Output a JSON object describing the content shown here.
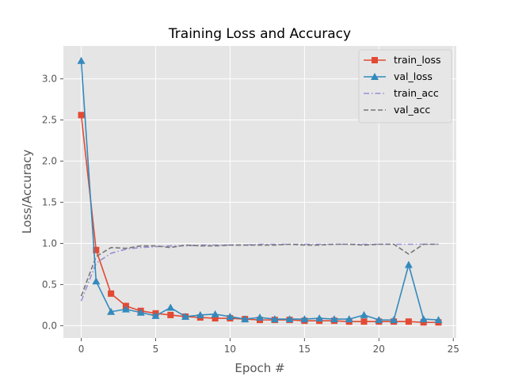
{
  "chart_data": {
    "type": "line",
    "title": "Training Loss and Accuracy",
    "xlabel": "Epoch #",
    "ylabel": "Loss/Accuracy",
    "xlim": [
      -1.2,
      25.2
    ],
    "ylim": [
      -0.15,
      3.4
    ],
    "xticks": [
      0,
      5,
      10,
      15,
      20,
      25
    ],
    "yticks": [
      0.0,
      0.5,
      1.0,
      1.5,
      2.0,
      2.5,
      3.0
    ],
    "xtick_labels": [
      "0",
      "5",
      "10",
      "15",
      "20",
      "25"
    ],
    "ytick_labels": [
      "0.0",
      "0.5",
      "1.0",
      "1.5",
      "2.0",
      "2.5",
      "3.0"
    ],
    "grid": true,
    "legend_position": "top-right",
    "x": [
      0,
      1,
      2,
      3,
      4,
      5,
      6,
      7,
      8,
      9,
      10,
      11,
      12,
      13,
      14,
      15,
      16,
      17,
      18,
      19,
      20,
      21,
      22,
      23,
      24
    ],
    "series": [
      {
        "name": "train_loss",
        "color": "#E24A33",
        "linestyle": "solid",
        "marker": "square",
        "values": [
          2.56,
          0.92,
          0.39,
          0.24,
          0.18,
          0.15,
          0.13,
          0.11,
          0.1,
          0.09,
          0.09,
          0.08,
          0.07,
          0.07,
          0.07,
          0.06,
          0.06,
          0.06,
          0.05,
          0.05,
          0.05,
          0.05,
          0.05,
          0.04,
          0.04
        ]
      },
      {
        "name": "val_loss",
        "color": "#348ABD",
        "linestyle": "solid",
        "marker": "triangle",
        "values": [
          3.22,
          0.54,
          0.17,
          0.2,
          0.16,
          0.12,
          0.22,
          0.11,
          0.13,
          0.14,
          0.11,
          0.08,
          0.1,
          0.08,
          0.08,
          0.08,
          0.09,
          0.08,
          0.08,
          0.13,
          0.07,
          0.07,
          0.74,
          0.08,
          0.07
        ]
      },
      {
        "name": "train_acc",
        "color": "#988ED5",
        "linestyle": "dashdot",
        "marker": "none",
        "values": [
          0.3,
          0.76,
          0.88,
          0.93,
          0.95,
          0.96,
          0.97,
          0.97,
          0.98,
          0.98,
          0.98,
          0.98,
          0.99,
          0.99,
          0.99,
          0.99,
          0.99,
          0.99,
          0.99,
          0.99,
          0.99,
          0.99,
          0.99,
          0.99,
          0.99
        ]
      },
      {
        "name": "val_acc",
        "color": "#777777",
        "linestyle": "dashed",
        "marker": "none",
        "values": [
          0.36,
          0.84,
          0.95,
          0.94,
          0.97,
          0.97,
          0.95,
          0.98,
          0.97,
          0.97,
          0.98,
          0.98,
          0.98,
          0.98,
          0.99,
          0.98,
          0.98,
          0.99,
          0.99,
          0.98,
          0.99,
          0.99,
          0.87,
          0.99,
          0.99
        ]
      }
    ]
  }
}
